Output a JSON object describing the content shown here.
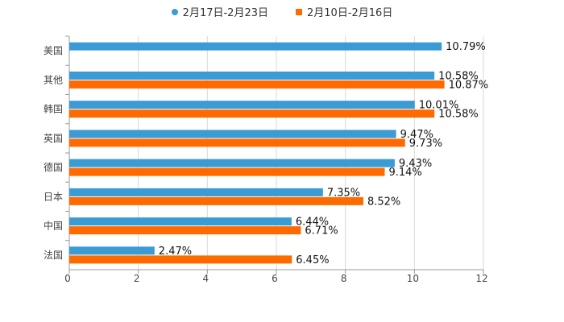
{
  "chart_data": {
    "type": "bar",
    "orientation": "horizontal",
    "title": "",
    "xlabel": "",
    "ylabel": "",
    "categories": [
      "美国",
      "其他",
      "韩国",
      "英国",
      "德国",
      "日本",
      "中国",
      "法国"
    ],
    "series": [
      {
        "name": "2月17日-2月23日",
        "color": "#3b9bd4",
        "values": [
          10.79,
          10.58,
          10.01,
          9.47,
          9.43,
          7.35,
          6.44,
          2.47
        ],
        "labels": [
          "10.79%",
          "10.58%",
          "10.01%",
          "9.47%",
          "9.43%",
          "7.35%",
          "6.44%",
          "2.47%"
        ]
      },
      {
        "name": "2月10日-2月16日",
        "color": "#ff6a00",
        "values": [
          null,
          10.87,
          10.58,
          9.73,
          9.14,
          8.52,
          6.71,
          6.45
        ],
        "labels": [
          "",
          "10.87%",
          "10.58%",
          "9.73%",
          "9.14%",
          "8.52%",
          "6.71%",
          "6.45%"
        ]
      }
    ],
    "xlim": [
      0,
      12
    ],
    "xticks": [
      0,
      2,
      4,
      6,
      8,
      10,
      12
    ],
    "xtick_labels": [
      "0",
      "2",
      "4",
      "6",
      "8",
      "10",
      "12"
    ],
    "grid": true,
    "legend_position": "top-center"
  }
}
